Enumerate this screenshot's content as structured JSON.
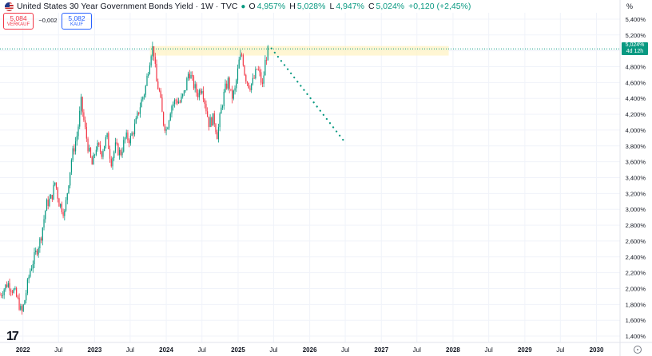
{
  "header": {
    "title": "United States 30 Year Government Bonds Yield",
    "interval": "1W",
    "source": "TVC",
    "ohlc": [
      {
        "key": "O",
        "value": "4,957%"
      },
      {
        "key": "H",
        "value": "5,028%"
      },
      {
        "key": "L",
        "value": "4,947%"
      },
      {
        "key": "C",
        "value": "5,024%"
      }
    ],
    "change": "+0,120 (+2,45%)"
  },
  "trade": {
    "sell_price": "5,084",
    "sell_label": "VERKAUF",
    "spread": "−0,002",
    "buy_price": "5,082",
    "buy_label": "KAUF"
  },
  "price_axis": {
    "unit": "%",
    "last_price": "5,024%",
    "countdown": "4d 12h"
  },
  "colors": {
    "up": "#089981",
    "down": "#f23645",
    "zone": "#fff3c4",
    "dotted": "#089981",
    "grid": "#f0f3fa"
  },
  "chart_data": {
    "type": "candlestick",
    "interval": "1W",
    "y_unit": "%",
    "ylim": [
      1.32,
      5.48
    ],
    "y_ticks": [
      1.4,
      1.6,
      1.8,
      2.0,
      2.2,
      2.4,
      2.6,
      2.8,
      3.0,
      3.2,
      3.4,
      3.6,
      3.8,
      4.0,
      4.2,
      4.4,
      4.6,
      4.8,
      5.0,
      5.2,
      5.4
    ],
    "y_tick_labels": [
      "1,400%",
      "1,600%",
      "1,800%",
      "2,000%",
      "2,200%",
      "2,400%",
      "2,600%",
      "2,800%",
      "3,000%",
      "3,200%",
      "3,400%",
      "3,600%",
      "3,800%",
      "4,000%",
      "4,200%",
      "4,400%",
      "4,600%",
      "4,800%",
      "5,000%",
      "5,200%",
      "5,400%"
    ],
    "x_ticks": [
      {
        "date": "2022-01-01",
        "label": "2022"
      },
      {
        "date": "2022-07-01",
        "label": "Jul"
      },
      {
        "date": "2023-01-01",
        "label": "2023"
      },
      {
        "date": "2023-07-01",
        "label": "Jul"
      },
      {
        "date": "2024-01-01",
        "label": "2024"
      },
      {
        "date": "2024-07-01",
        "label": "Jul"
      },
      {
        "date": "2025-01-01",
        "label": "2025"
      },
      {
        "date": "2025-07-01",
        "label": "Jul"
      },
      {
        "date": "2026-01-01",
        "label": "2026"
      },
      {
        "date": "2026-07-01",
        "label": "Jul"
      },
      {
        "date": "2027-01-01",
        "label": "2027"
      },
      {
        "date": "2027-07-01",
        "label": "Jul"
      },
      {
        "date": "2028-01-01",
        "label": "2028"
      },
      {
        "date": "2028-07-01",
        "label": "Jul"
      },
      {
        "date": "2029-01-01",
        "label": "2029"
      },
      {
        "date": "2029-07-01",
        "label": "Jul"
      },
      {
        "date": "2030-01-01",
        "label": "2030"
      }
    ],
    "xlim": [
      "2021-09-06",
      "2030-05-01"
    ],
    "series": [
      {
        "date": "2021-09-06",
        "close": 1.92
      },
      {
        "date": "2021-10-15",
        "close": 2.07
      },
      {
        "date": "2021-11-20",
        "close": 1.95
      },
      {
        "date": "2021-12-10",
        "close": 1.82
      },
      {
        "date": "2021-12-25",
        "close": 1.68
      },
      {
        "date": "2022-01-08",
        "close": 1.83
      },
      {
        "date": "2022-02-05",
        "close": 2.22
      },
      {
        "date": "2022-03-05",
        "close": 2.43
      },
      {
        "date": "2022-04-01",
        "close": 2.63
      },
      {
        "date": "2022-04-30",
        "close": 3.06
      },
      {
        "date": "2022-05-27",
        "close": 3.15
      },
      {
        "date": "2022-06-14",
        "close": 3.35
      },
      {
        "date": "2022-07-03",
        "close": 3.09
      },
      {
        "date": "2022-08-01",
        "close": 2.95
      },
      {
        "date": "2022-09-06",
        "close": 3.65
      },
      {
        "date": "2022-10-05",
        "close": 3.95
      },
      {
        "date": "2022-10-24",
        "close": 4.35
      },
      {
        "date": "2022-11-11",
        "close": 4.05
      },
      {
        "date": "2022-12-01",
        "close": 3.75
      },
      {
        "date": "2022-12-20",
        "close": 3.55
      },
      {
        "date": "2023-01-10",
        "close": 3.8
      },
      {
        "date": "2023-02-06",
        "close": 3.72
      },
      {
        "date": "2023-03-05",
        "close": 3.92
      },
      {
        "date": "2023-03-26",
        "close": 3.6
      },
      {
        "date": "2023-04-17",
        "close": 3.79
      },
      {
        "date": "2023-05-13",
        "close": 3.7
      },
      {
        "date": "2023-06-07",
        "close": 3.91
      },
      {
        "date": "2023-07-01",
        "close": 3.88
      },
      {
        "date": "2023-07-30",
        "close": 4.09
      },
      {
        "date": "2023-08-25",
        "close": 4.35
      },
      {
        "date": "2023-09-15",
        "close": 4.5
      },
      {
        "date": "2023-10-06",
        "close": 4.84
      },
      {
        "date": "2023-10-20",
        "close": 5.05
      },
      {
        "date": "2023-10-29",
        "close": 5.0
      },
      {
        "date": "2023-11-11",
        "close": 4.62
      },
      {
        "date": "2023-11-28",
        "close": 4.47
      },
      {
        "date": "2023-12-15",
        "close": 4.12
      },
      {
        "date": "2024-01-02",
        "close": 4.0
      },
      {
        "date": "2024-01-25",
        "close": 4.3
      },
      {
        "date": "2024-02-20",
        "close": 4.38
      },
      {
        "date": "2024-03-12",
        "close": 4.35
      },
      {
        "date": "2024-04-04",
        "close": 4.48
      },
      {
        "date": "2024-04-25",
        "close": 4.75
      },
      {
        "date": "2024-05-16",
        "close": 4.59
      },
      {
        "date": "2024-06-08",
        "close": 4.45
      },
      {
        "date": "2024-07-01",
        "close": 4.55
      },
      {
        "date": "2024-07-20",
        "close": 4.3
      },
      {
        "date": "2024-08-05",
        "close": 4.09
      },
      {
        "date": "2024-08-30",
        "close": 4.15
      },
      {
        "date": "2024-09-17",
        "close": 3.93
      },
      {
        "date": "2024-10-07",
        "close": 4.26
      },
      {
        "date": "2024-10-25",
        "close": 4.5
      },
      {
        "date": "2024-11-13",
        "close": 4.63
      },
      {
        "date": "2024-11-28",
        "close": 4.4
      },
      {
        "date": "2024-12-16",
        "close": 4.5
      },
      {
        "date": "2025-01-07",
        "close": 4.88
      },
      {
        "date": "2025-01-22",
        "close": 4.96
      },
      {
        "date": "2025-02-05",
        "close": 4.69
      },
      {
        "date": "2025-02-28",
        "close": 4.55
      },
      {
        "date": "2025-03-20",
        "close": 4.62
      },
      {
        "date": "2025-04-08",
        "close": 4.78
      },
      {
        "date": "2025-04-20",
        "close": 4.7
      },
      {
        "date": "2025-05-05",
        "close": 4.55
      },
      {
        "date": "2025-05-21",
        "close": 4.9
      },
      {
        "date": "2025-06-06",
        "close": 5.02
      }
    ],
    "resistance_zone": {
      "from_date": "2023-10-10",
      "to_date": "2027-12-10",
      "low": 4.94,
      "high": 5.06
    },
    "current_price_line": 5.024,
    "projection": {
      "from_date": "2025-06-20",
      "from_value": 5.03,
      "to_date": "2026-06-22",
      "to_value": 3.87
    }
  }
}
